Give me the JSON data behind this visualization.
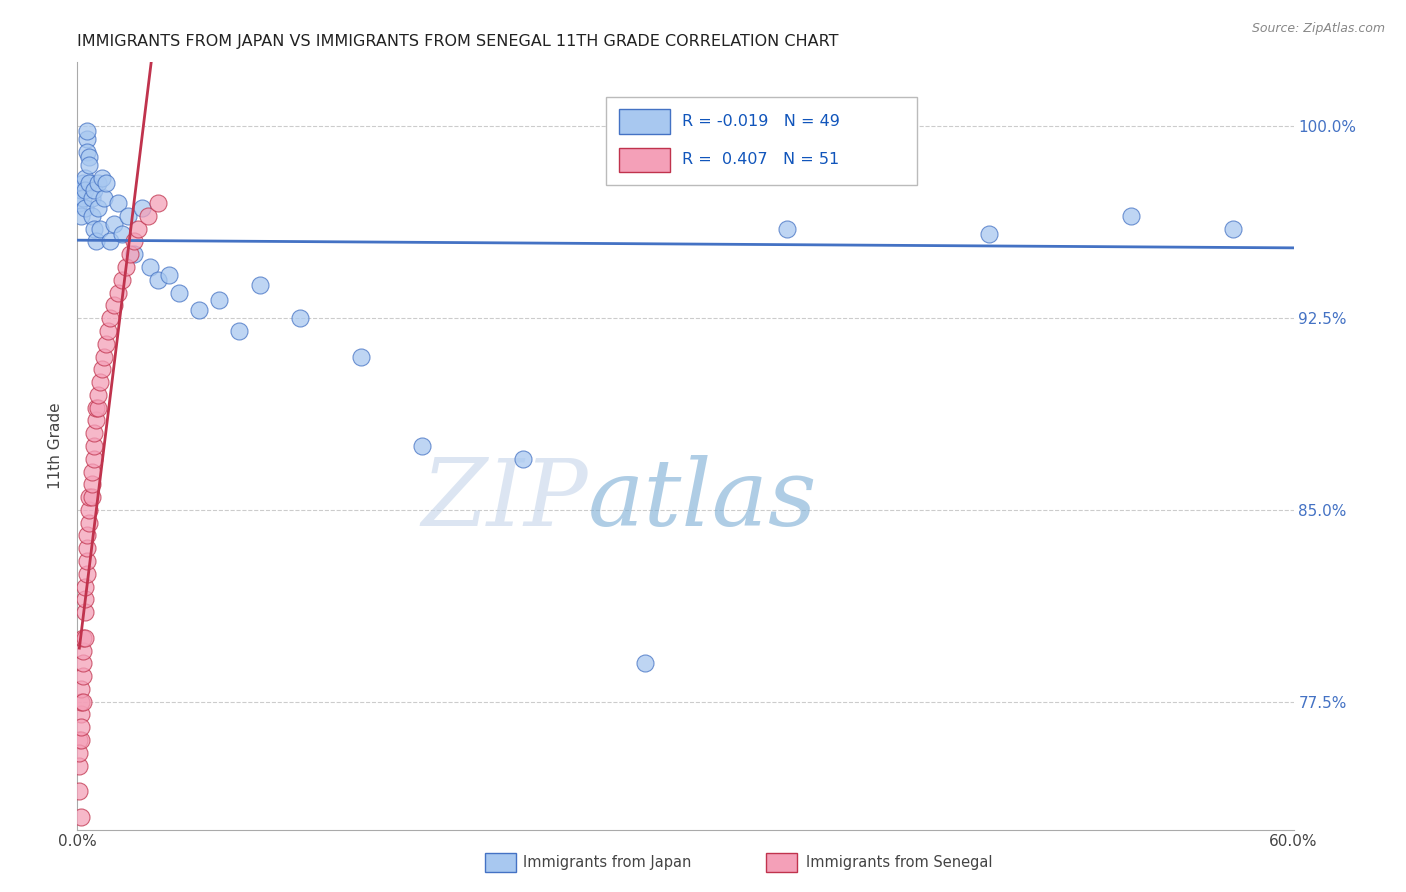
{
  "title": "IMMIGRANTS FROM JAPAN VS IMMIGRANTS FROM SENEGAL 11TH GRADE CORRELATION CHART",
  "source": "Source: ZipAtlas.com",
  "ylabel": "11th Grade",
  "ytick_labels": [
    "77.5%",
    "85.0%",
    "92.5%",
    "100.0%"
  ],
  "ytick_values": [
    0.775,
    0.85,
    0.925,
    1.0
  ],
  "xlim": [
    0.0,
    0.6
  ],
  "ylim": [
    0.725,
    1.025
  ],
  "legend_R_japan": "-0.019",
  "legend_N_japan": "49",
  "legend_R_senegal": "0.407",
  "legend_N_senegal": "51",
  "japan_color": "#A8C8F0",
  "senegal_color": "#F4A0B8",
  "japan_edge_color": "#4472C4",
  "senegal_edge_color": "#C0334D",
  "japan_line_color": "#4472C4",
  "senegal_line_color": "#C0334D",
  "japan_points_x": [
    0.001,
    0.002,
    0.002,
    0.003,
    0.003,
    0.004,
    0.004,
    0.004,
    0.005,
    0.005,
    0.005,
    0.006,
    0.006,
    0.006,
    0.007,
    0.007,
    0.008,
    0.008,
    0.009,
    0.01,
    0.01,
    0.011,
    0.012,
    0.013,
    0.014,
    0.016,
    0.018,
    0.02,
    0.022,
    0.025,
    0.028,
    0.032,
    0.036,
    0.04,
    0.045,
    0.05,
    0.06,
    0.07,
    0.08,
    0.09,
    0.11,
    0.14,
    0.17,
    0.22,
    0.28,
    0.35,
    0.45,
    0.52,
    0.57
  ],
  "japan_points_y": [
    0.97,
    0.975,
    0.965,
    0.978,
    0.972,
    0.968,
    0.98,
    0.975,
    0.995,
    0.998,
    0.99,
    0.988,
    0.985,
    0.978,
    0.965,
    0.972,
    0.96,
    0.975,
    0.955,
    0.968,
    0.978,
    0.96,
    0.98,
    0.972,
    0.978,
    0.955,
    0.962,
    0.97,
    0.958,
    0.965,
    0.95,
    0.968,
    0.945,
    0.94,
    0.942,
    0.935,
    0.928,
    0.932,
    0.92,
    0.938,
    0.925,
    0.91,
    0.875,
    0.87,
    0.79,
    0.96,
    0.958,
    0.965,
    0.96
  ],
  "senegal_points_x": [
    0.001,
    0.001,
    0.001,
    0.001,
    0.002,
    0.002,
    0.002,
    0.002,
    0.002,
    0.003,
    0.003,
    0.003,
    0.003,
    0.003,
    0.004,
    0.004,
    0.004,
    0.004,
    0.005,
    0.005,
    0.005,
    0.005,
    0.006,
    0.006,
    0.006,
    0.007,
    0.007,
    0.007,
    0.008,
    0.008,
    0.008,
    0.009,
    0.009,
    0.01,
    0.01,
    0.011,
    0.012,
    0.013,
    0.014,
    0.015,
    0.016,
    0.018,
    0.02,
    0.022,
    0.024,
    0.026,
    0.028,
    0.03,
    0.035,
    0.04,
    0.002
  ],
  "senegal_points_y": [
    0.74,
    0.75,
    0.76,
    0.755,
    0.76,
    0.77,
    0.775,
    0.765,
    0.78,
    0.775,
    0.785,
    0.79,
    0.795,
    0.8,
    0.8,
    0.81,
    0.815,
    0.82,
    0.825,
    0.83,
    0.835,
    0.84,
    0.845,
    0.85,
    0.855,
    0.855,
    0.86,
    0.865,
    0.87,
    0.875,
    0.88,
    0.885,
    0.89,
    0.89,
    0.895,
    0.9,
    0.905,
    0.91,
    0.915,
    0.92,
    0.925,
    0.93,
    0.935,
    0.94,
    0.945,
    0.95,
    0.955,
    0.96,
    0.965,
    0.97,
    0.73
  ],
  "watermark_zip": "ZIP",
  "watermark_atlas": "atlas",
  "background_color": "#FFFFFF",
  "grid_color": "#CCCCCC"
}
